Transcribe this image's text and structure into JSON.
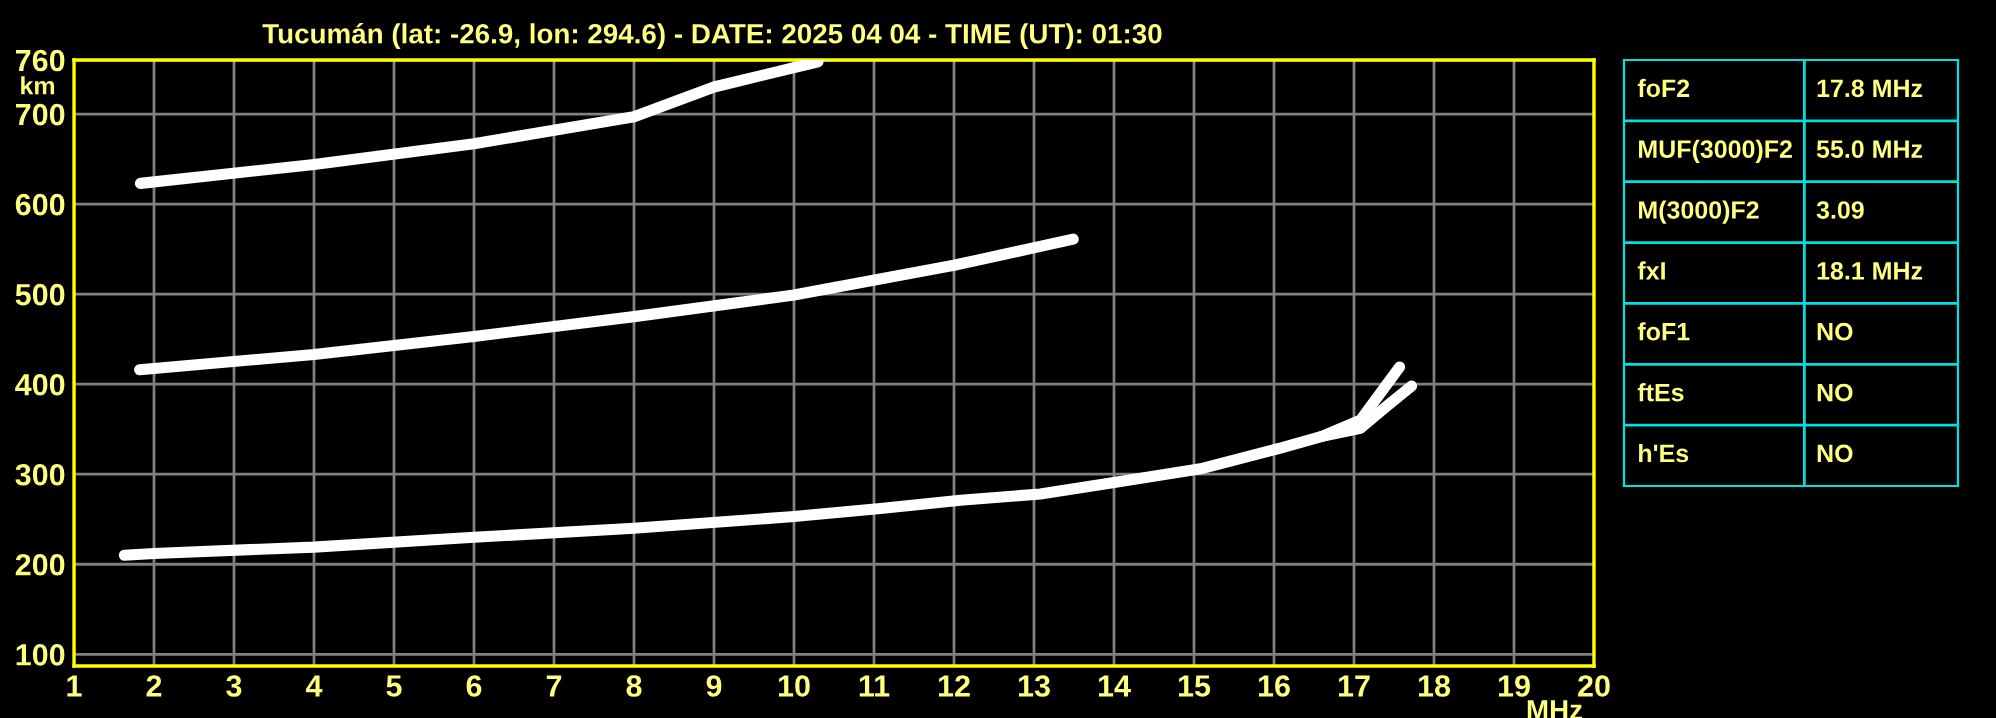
{
  "chart_data": [
    {
      "type": "line",
      "title": "Tucumán (lat: -26.9, lon: 294.6) - DATE: 2025 04 04 - TIME (UT): 01:30",
      "xlabel": "MHz",
      "ylabel": "km",
      "series": [
        {
          "color": "#ffffff",
          "x": [
            1.63,
            2,
            4,
            6,
            8,
            10,
            11.08,
            12.08,
            13.08,
            14.08,
            15.08,
            16.08,
            16.6,
            17.08,
            17.57
          ],
          "values": [
            210,
            212,
            219,
            230,
            240,
            253,
            262,
            271,
            278,
            292,
            306,
            329,
            342,
            360,
            419
          ]
        },
        {
          "color": "#ffffff",
          "x": [
            16.6,
            17.08,
            17.4,
            17.72
          ],
          "values": [
            342,
            351,
            375,
            398
          ]
        },
        {
          "color": "#ffffff",
          "x": [
            1.82,
            4,
            6,
            8,
            10,
            12,
            13.49
          ],
          "values": [
            416,
            433,
            453,
            475,
            499,
            532,
            561
          ]
        },
        {
          "color": "#ffffff",
          "x": [
            1.83,
            4,
            6,
            8,
            9,
            10.3
          ],
          "values": [
            623,
            644,
            667,
            697,
            730,
            758
          ]
        }
      ],
      "xlim": [
        1,
        20
      ],
      "ylim": [
        87,
        760
      ],
      "xticks": [
        1,
        2,
        3,
        4,
        5,
        6,
        7,
        8,
        9,
        10,
        11,
        12,
        13,
        14,
        15,
        16,
        17,
        18,
        19,
        20
      ],
      "yticks": [
        100,
        200,
        300,
        400,
        500,
        600,
        700,
        760
      ],
      "grid": true,
      "marker": "none",
      "line_style": "solid"
    },
    {
      "type": "other",
      "annotations": [
        "foF2",
        "17.8 MHz",
        "MUF(3000)F2",
        "55.0 MHz",
        "M(3000)F2",
        "3.09",
        "fxI",
        "18.1 MHz",
        "foF1",
        "NO",
        "ftEs",
        "NO",
        "h'Es",
        "NO"
      ]
    }
  ]
}
